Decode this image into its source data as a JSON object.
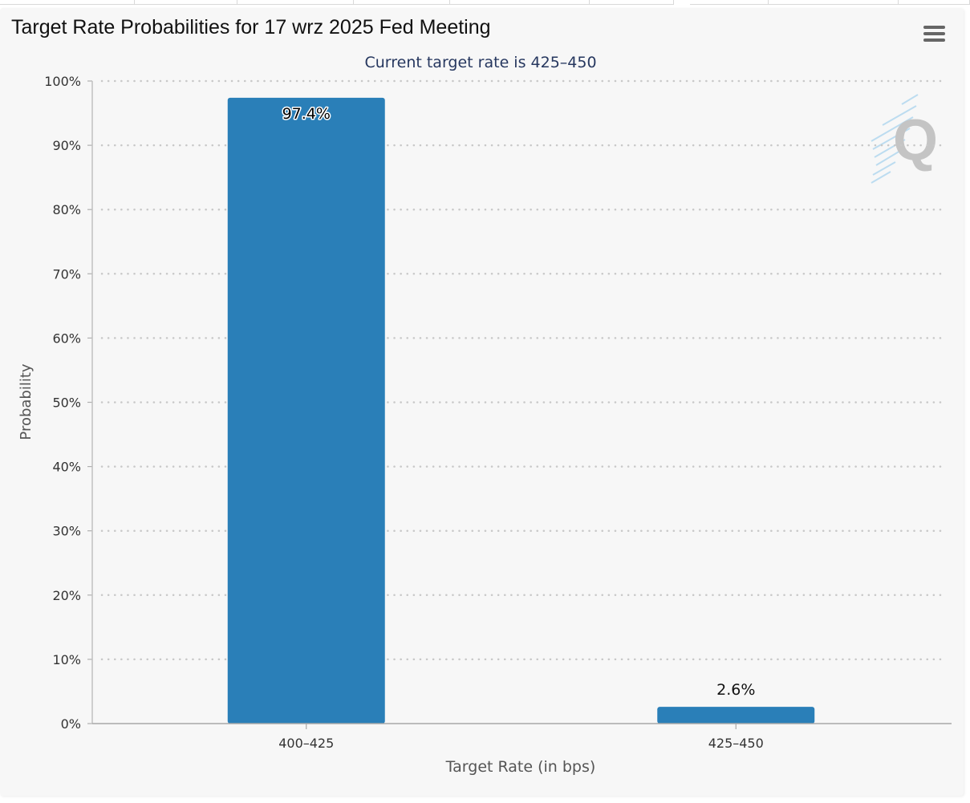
{
  "page": {
    "chart_title": "Target Rate Probabilities for 17 wrz 2025 Fed Meeting",
    "menu_icon": "hamburger-menu-icon",
    "watermark_logo": "Q"
  },
  "colors": {
    "bar": "#2a7fb8",
    "subtitle": "#26375f",
    "axis_text": "#333333",
    "axis_title": "#555555",
    "grid": "#c8c8c8",
    "background": "#f7f7f7"
  },
  "chart_data": {
    "type": "bar",
    "title": "Target Rate Probabilities for 17 wrz 2025 Fed Meeting",
    "subtitle": "Current target rate is 425–450",
    "xlabel": "Target Rate (in bps)",
    "ylabel": "Probability",
    "categories": [
      "400–425",
      "425–450"
    ],
    "values": [
      97.4,
      2.6
    ],
    "data_labels": [
      "97.4%",
      "2.6%"
    ],
    "ylim": [
      0,
      100
    ],
    "yticks": [
      0,
      10,
      20,
      30,
      40,
      50,
      60,
      70,
      80,
      90,
      100
    ],
    "ytick_labels": [
      "0%",
      "10%",
      "20%",
      "30%",
      "40%",
      "50%",
      "60%",
      "70%",
      "80%",
      "90%",
      "100%"
    ],
    "grid": "dotted horizontal",
    "legend": "none"
  }
}
